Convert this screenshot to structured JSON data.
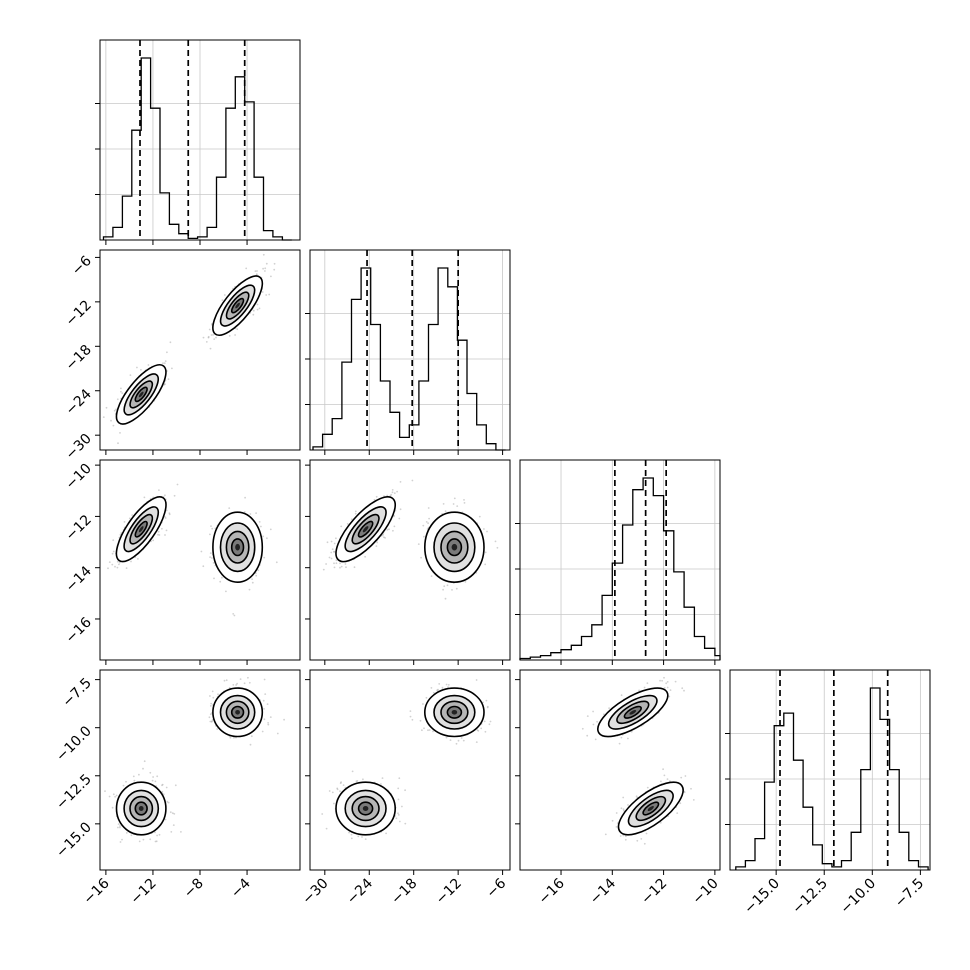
{
  "chart_data": {
    "type": "corner",
    "grid": true,
    "dimensions": [
      {
        "range": [
          -16.5,
          0.5
        ],
        "ticks": [
          -16,
          -12,
          -8,
          -4
        ],
        "tick_labels": [
          "−16",
          "−12",
          "−8",
          "−4"
        ],
        "quantiles": [
          -13.1,
          -9.0,
          -4.2
        ],
        "hist_edges": [
          -16.2,
          -15.4,
          -14.6,
          -13.8,
          -13.0,
          -12.2,
          -11.4,
          -10.6,
          -9.8,
          -9.0,
          -8.2,
          -7.4,
          -6.6,
          -5.8,
          -5.0,
          -4.2,
          -3.4,
          -2.6,
          -1.8,
          -1.0,
          -0.2
        ],
        "hist_counts": [
          1,
          4,
          14,
          35,
          58,
          42,
          15,
          5,
          2,
          0.5,
          1,
          4,
          20,
          42,
          52,
          44,
          20,
          3,
          1,
          0
        ]
      },
      {
        "range": [
          -32,
          -5
        ],
        "ticks": [
          -30,
          -24,
          -18,
          -12,
          -6
        ],
        "tick_labels": [
          "−30",
          "−24",
          "−18",
          "−12",
          "−6"
        ],
        "quantiles": [
          -24.3,
          -18.2,
          -12.0
        ],
        "hist_edges": [
          -31.6,
          -30.3,
          -29.0,
          -27.7,
          -26.4,
          -25.1,
          -23.8,
          -22.5,
          -21.2,
          -19.9,
          -18.6,
          -17.3,
          -16.0,
          -14.7,
          -13.4,
          -12.1,
          -10.8,
          -9.5,
          -8.2,
          -6.9,
          -5.6
        ],
        "hist_counts": [
          1,
          5,
          10,
          28,
          48,
          58,
          40,
          22,
          12,
          4,
          8,
          22,
          40,
          58,
          52,
          35,
          18,
          8,
          2,
          0
        ]
      },
      {
        "range": [
          -17.6,
          -9.8
        ],
        "ticks": [
          -16,
          -14,
          -12,
          -10
        ],
        "tick_labels": [
          "−16",
          "−14",
          "−12",
          "−10"
        ],
        "quantiles": [
          -13.9,
          -12.7,
          -11.9
        ],
        "hist_edges": [
          -17.6,
          -17.2,
          -16.8,
          -16.4,
          -16.0,
          -15.6,
          -15.2,
          -14.8,
          -14.4,
          -14.0,
          -13.6,
          -13.2,
          -12.8,
          -12.4,
          -12.0,
          -11.6,
          -11.2,
          -10.8,
          -10.4,
          -10.0,
          -9.8
        ],
        "hist_counts": [
          0.5,
          1,
          1.5,
          2.5,
          3.5,
          5,
          8,
          12,
          22,
          33,
          46,
          58,
          62,
          56,
          44,
          30,
          18,
          8,
          4,
          1.5
        ]
      },
      {
        "range": [
          -17.4,
          -7.0
        ],
        "ticks": [
          -15.0,
          -12.5,
          -10.0,
          -7.5
        ],
        "tick_labels": [
          "−15.0",
          "−12.5",
          "−10.0",
          "−7.5"
        ],
        "quantiles": [
          -14.8,
          -12.0,
          -9.2
        ],
        "hist_edges": [
          -17.1,
          -16.6,
          -16.1,
          -15.6,
          -15.1,
          -14.6,
          -14.1,
          -13.6,
          -13.1,
          -12.6,
          -12.1,
          -11.6,
          -11.1,
          -10.6,
          -10.1,
          -9.6,
          -9.1,
          -8.6,
          -8.1,
          -7.6,
          -7.1
        ],
        "hist_counts": [
          1,
          3,
          10,
          28,
          46,
          50,
          35,
          20,
          8,
          2,
          1,
          3,
          12,
          32,
          58,
          48,
          32,
          12,
          3,
          1
        ]
      }
    ],
    "clusters": [
      {
        "mean": [
          -13.0,
          -24.5,
          -12.5,
          -14.2
        ],
        "std": [
          1.0,
          1.9,
          0.6,
          0.65
        ]
      },
      {
        "mean": [
          -4.8,
          -12.5,
          -13.2,
          -9.2
        ],
        "std": [
          1.0,
          1.9,
          0.65,
          0.6
        ]
      }
    ],
    "cluster_correlations": [
      {
        "0-1": 0.75,
        "0-2": 0.75,
        "1-2": 0.75,
        "2-3": 0.7
      },
      {
        "0-1": 0.75,
        "2-3": 0.7
      }
    ]
  }
}
